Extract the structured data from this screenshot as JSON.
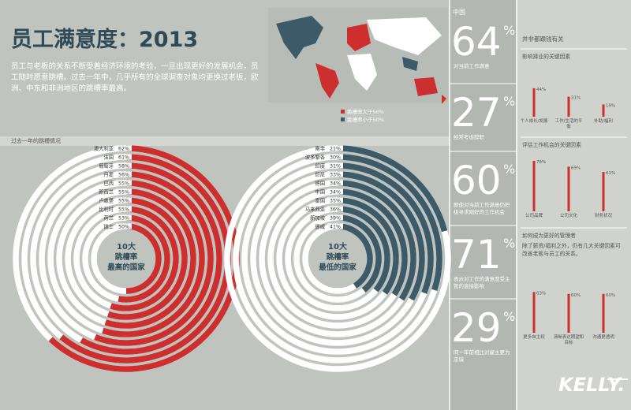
{
  "title": "员工满意度：2013",
  "intro": "员工与老板的关系不断受着经济环境的考验，一旦出现更好的发展机会，员工随时愿意跳槽。过去一年中，几乎所有的全球调查对象均更换过老板，欧洲、中东和非洲地区的跳槽率最高。",
  "map_legend": [
    {
      "label": "跳槽率大于50%",
      "color": "#cc2f2e"
    },
    {
      "label": "跳槽率小于50%",
      "color": "#3d5a68"
    }
  ],
  "section_label": "过去一年的跳槽情况",
  "rings": [
    {
      "center": [
        "10大",
        "跳槽率",
        "最高的国家"
      ],
      "color": "#cc2f2e",
      "items": [
        {
          "name": "澳大利亚",
          "value": 62,
          "label": "62%"
        },
        {
          "name": "法国",
          "value": 61,
          "label": "61%"
        },
        {
          "name": "葡萄牙",
          "value": 58,
          "label": "58%"
        },
        {
          "name": "丹麦",
          "value": 56,
          "label": "56%"
        },
        {
          "name": "巴西",
          "value": 55,
          "label": "55%"
        },
        {
          "name": "新西兰",
          "value": 55,
          "label": "55%"
        },
        {
          "name": "卢森堡",
          "value": 55,
          "label": "55%"
        },
        {
          "name": "比利时",
          "value": 55,
          "label": "55%"
        },
        {
          "name": "荷兰",
          "value": 53,
          "label": "53%"
        },
        {
          "name": "瑞士",
          "value": 50,
          "label": "50%"
        }
      ]
    },
    {
      "center": [
        "10大",
        "跳槽率",
        "最低的国家"
      ],
      "color": "#3d5a68",
      "items": [
        {
          "name": "南非",
          "value": 21,
          "label": "21%"
        },
        {
          "name": "波多黎各",
          "value": 30,
          "label": "30%"
        },
        {
          "name": "印度",
          "value": 31,
          "label": "31%"
        },
        {
          "name": "印尼",
          "value": 33,
          "label": "33%"
        },
        {
          "name": "德国",
          "value": 34,
          "label": "34%"
        },
        {
          "name": "中国",
          "value": 34,
          "label": "34%"
        },
        {
          "name": "泰国",
          "value": 35,
          "label": "35%"
        },
        {
          "name": "马来西亚",
          "value": 36,
          "label": "36%"
        },
        {
          "name": "新加坡",
          "value": 39,
          "label": "39%"
        },
        {
          "name": "挪威",
          "value": 41,
          "label": "41%"
        }
      ]
    }
  ],
  "china": {
    "title": "中国",
    "unit": "%",
    "stats": [
      {
        "value": 64,
        "text": "对当前工作满意"
      },
      {
        "value": 27,
        "text": "经常考虑辞职"
      },
      {
        "value": 60,
        "text": "即使对当前工作满意仍积极寻求刚好的工作机会"
      },
      {
        "value": 71,
        "text": "表示对工作的满意度受主管的直接影响"
      },
      {
        "value": 29,
        "text": "同一年前相比对雇主更为忠诚"
      }
    ]
  },
  "factors": {
    "title": "并非都跟钱有关",
    "color": "#cc2f2e",
    "groups": [
      {
        "title": "影响择业的关键因素",
        "items": [
          {
            "name": "个人成长/发展",
            "value": 44,
            "label": "44%"
          },
          {
            "name": "工作/生活的平衡",
            "value": 31,
            "label": "31%"
          },
          {
            "name": "补助/福利",
            "value": 19,
            "label": "19%"
          }
        ]
      },
      {
        "title": "评估工作机会的关键因素",
        "items": [
          {
            "name": "公司品牌",
            "value": 78,
            "label": "78%"
          },
          {
            "name": "公司文化",
            "value": 69,
            "label": "69%"
          },
          {
            "name": "财务状况",
            "value": 61,
            "label": "61%"
          }
        ]
      },
      {
        "title": "如何成为更好的管理者",
        "text": "除了薪资/福利之外，仍有几大关键因素可改善老板与员工的关系。",
        "items": [
          {
            "name": "更多自主权",
            "value": 63,
            "label": "63%"
          },
          {
            "name": "清晰表达期望和目标",
            "value": 60,
            "label": "60%"
          },
          {
            "name": "沟通更透明",
            "value": 60,
            "label": "60%"
          }
        ]
      }
    ]
  },
  "logo": "KELLY."
}
